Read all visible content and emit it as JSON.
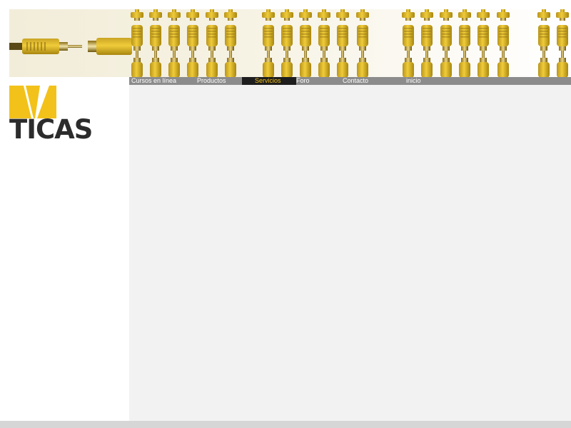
{
  "colors": {
    "accent": "#f2c21b",
    "nav_bg": "#8c8c8c",
    "nav_active_bg": "#1e1e1e",
    "content_bg": "#f2f2f2",
    "logo_text": "#2c2c2c"
  },
  "banner": {
    "image": "yellow-rca-cable-connectors"
  },
  "nav": {
    "items": [
      {
        "label": "Cursos en línea",
        "active": false
      },
      {
        "label": "Productos",
        "active": false
      },
      {
        "label": "Servicios",
        "active": true
      },
      {
        "label": "Foro",
        "active": false
      },
      {
        "label": "Contacto",
        "active": false
      },
      {
        "label": "inicio",
        "active": false
      }
    ]
  },
  "logo": {
    "text": "TICAS"
  }
}
